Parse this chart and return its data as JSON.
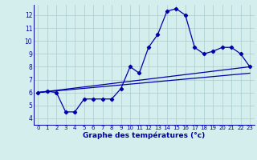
{
  "xlabel": "Graphe des températures (°c)",
  "bg_color": "#d4eeee",
  "grid_color": "#aacccc",
  "line_color": "#0000aa",
  "xlim": [
    -0.5,
    23.5
  ],
  "ylim": [
    3.5,
    12.8
  ],
  "yticks": [
    4,
    5,
    6,
    7,
    8,
    9,
    10,
    11,
    12
  ],
  "xticks": [
    0,
    1,
    2,
    3,
    4,
    5,
    6,
    7,
    8,
    9,
    10,
    11,
    12,
    13,
    14,
    15,
    16,
    17,
    18,
    19,
    20,
    21,
    22,
    23
  ],
  "curve1_x": [
    0,
    1,
    2,
    3,
    4,
    5,
    6,
    7,
    8,
    9,
    10,
    11,
    12,
    13,
    14,
    15,
    16,
    17,
    18,
    19,
    20,
    21,
    22,
    23
  ],
  "curve1_y": [
    6.0,
    6.1,
    6.0,
    4.5,
    4.5,
    5.5,
    5.5,
    5.5,
    5.5,
    6.3,
    8.0,
    7.5,
    9.5,
    10.5,
    12.3,
    12.5,
    12.0,
    9.5,
    9.0,
    9.2,
    9.5,
    9.5,
    9.0,
    8.0
  ],
  "line1_x": [
    0,
    23
  ],
  "line1_y": [
    6.0,
    8.0
  ],
  "line2_x": [
    0,
    23
  ],
  "line2_y": [
    6.0,
    7.5
  ]
}
